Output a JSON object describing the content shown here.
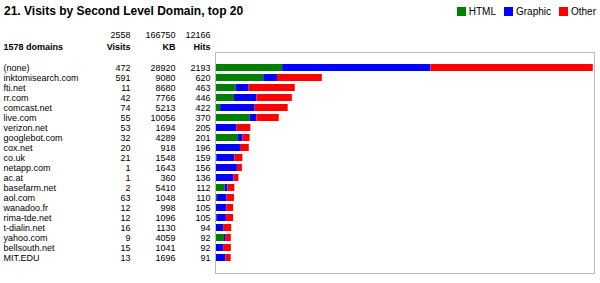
{
  "chart_data": {
    "type": "bar",
    "title": "21. Visits by Second Level Domain, top 20",
    "orientation": "horizontal",
    "stacked": true,
    "categories": [
      "(none)",
      "inktomisearch.com",
      "fti.net",
      "rr.com",
      "comcast.net",
      "live.com",
      "verizon.net",
      "googlebot.com",
      "cox.net",
      "co.uk",
      "netapp.com",
      "ac.at",
      "basefarm.net",
      "aol.com",
      "wanadoo.fr",
      "rima-tde.net",
      "t-dialin.net",
      "yahoo.com",
      "bellsouth.net",
      "MIT.EDU"
    ],
    "ylabel": "1578 domains",
    "series": [
      {
        "name": "HTML",
        "color": "#008000",
        "values": [
          390,
          280,
          120,
          110,
          30,
          200,
          5,
          130,
          5,
          8,
          2,
          2,
          55,
          12,
          6,
          8,
          5,
          52,
          5,
          3
        ]
      },
      {
        "name": "Graphic",
        "color": "#0000ff",
        "values": [
          860,
          80,
          75,
          130,
          200,
          40,
          120,
          30,
          140,
          105,
          125,
          105,
          17,
          55,
          60,
          55,
          42,
          10,
          42,
          58
        ]
      },
      {
        "name": "Other",
        "color": "#ff0000",
        "values": [
          943,
          260,
          268,
          206,
          192,
          130,
          80,
          41,
          51,
          46,
          29,
          29,
          40,
          43,
          39,
          42,
          47,
          30,
          45,
          30
        ]
      }
    ],
    "columns": [
      {
        "name": "Visits",
        "total": 2558,
        "values": [
          472,
          591,
          11,
          42,
          74,
          55,
          53,
          32,
          20,
          21,
          1,
          1,
          2,
          63,
          12,
          12,
          16,
          9,
          15,
          13
        ]
      },
      {
        "name": "KB",
        "total": 166750,
        "values": [
          28920,
          9080,
          8680,
          7766,
          5213,
          10056,
          1694,
          4289,
          918,
          1548,
          1643,
          360,
          5410,
          1048,
          998,
          1096,
          1130,
          4059,
          1041,
          1696
        ]
      },
      {
        "name": "Hits",
        "total": 12166,
        "values": [
          2193,
          620,
          463,
          446,
          422,
          370,
          205,
          201,
          196,
          159,
          156,
          136,
          112,
          110,
          105,
          105,
          94,
          92,
          92,
          91
        ]
      }
    ],
    "xlim": [
      0,
      2200
    ],
    "xticks": [],
    "tick_labels": "y",
    "legend": "upper right"
  }
}
